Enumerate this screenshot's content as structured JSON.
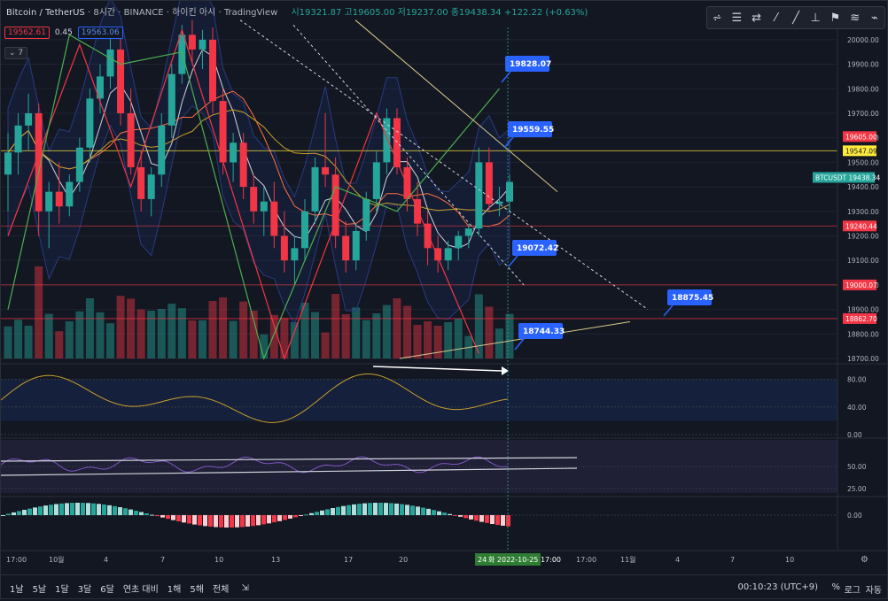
{
  "header": {
    "symbol": "Bitcoin / TetherUS",
    "interval": "8시간",
    "exchange": "BINANCE",
    "session": "하이킨 아시",
    "source": "TradingView",
    "ohlc": "시19321.87 고19605.00 저19237.00 종19438.34 +122.22 (+0.63%)"
  },
  "bidask": {
    "bid": "19562.61",
    "spread": "0.45",
    "ask": "19563.06"
  },
  "collapse_label": "7",
  "toolbar": {
    "icons": [
      "indicators-icon",
      "horizontal-line-icon",
      "trend-line-icon",
      "brush-icon",
      "flag-icon",
      "long-position-icon",
      "pattern-icon",
      "ruler-icon",
      "measure-icon"
    ],
    "glyphs": [
      "⩫",
      "☰",
      "⇄",
      "⁄",
      "╱",
      "⊥",
      "⚑",
      "≋",
      "⌁"
    ]
  },
  "chart_data": [
    {
      "type": "candlestick",
      "title": "",
      "ylim": [
        18700,
        20050
      ],
      "y_ticks": [
        20000,
        19900,
        19800,
        19700,
        19600,
        19500,
        19400,
        19300,
        19200,
        19100,
        19000,
        18900,
        18800,
        18700
      ],
      "price_labels": [
        {
          "value": 19605.0,
          "text": "19605.00",
          "color": "#f23645"
        },
        {
          "value": 19547.09,
          "text": "19547.09",
          "color": "#ffeb3b"
        },
        {
          "value": 19438.34,
          "text": "BTCUSDT 19438.34",
          "color": "#26a69a"
        },
        {
          "value": 19240.44,
          "text": "19240.44",
          "color": "#f23645"
        },
        {
          "value": 19000.07,
          "text": "19000.07",
          "color": "#f23645"
        },
        {
          "value": 18862.7,
          "text": "18862.70",
          "color": "#f23645"
        }
      ],
      "horizontal_lines": [
        {
          "value": 19547.09,
          "color": "#ffeb3b"
        },
        {
          "value": 19240.44,
          "color": "#f23645"
        },
        {
          "value": 19000.07,
          "color": "#f23645"
        },
        {
          "value": 18862.7,
          "color": "#f23645"
        }
      ],
      "callouts": [
        {
          "text": "19828.07"
        },
        {
          "text": "19559.55"
        },
        {
          "text": "19072.42"
        },
        {
          "text": "18875.45"
        },
        {
          "text": "18744.33"
        }
      ],
      "candles": [
        [
          19450,
          19620,
          19300,
          19540
        ],
        [
          19540,
          19700,
          19450,
          19650
        ],
        [
          19650,
          19780,
          19550,
          19700
        ],
        [
          19700,
          19740,
          19200,
          19300
        ],
        [
          19300,
          19420,
          19150,
          19380
        ],
        [
          19380,
          19500,
          19250,
          19320
        ],
        [
          19320,
          19450,
          19280,
          19420
        ],
        [
          19420,
          19600,
          19380,
          19560
        ],
        [
          19560,
          19800,
          19500,
          19760
        ],
        [
          19760,
          19900,
          19700,
          19850
        ],
        [
          19850,
          20020,
          19800,
          19960
        ],
        [
          19960,
          20020,
          19650,
          19700
        ],
        [
          19700,
          19800,
          19450,
          19480
        ],
        [
          19480,
          19550,
          19300,
          19350
        ],
        [
          19350,
          19480,
          19280,
          19450
        ],
        [
          19450,
          19700,
          19400,
          19650
        ],
        [
          19650,
          19900,
          19600,
          19860
        ],
        [
          19860,
          20060,
          19820,
          20020
        ],
        [
          20020,
          20080,
          19900,
          19960
        ],
        [
          19960,
          20040,
          19880,
          20000
        ],
        [
          20000,
          20050,
          19700,
          19750
        ],
        [
          19750,
          19800,
          19450,
          19500
        ],
        [
          19500,
          19620,
          19420,
          19580
        ],
        [
          19580,
          19620,
          19350,
          19400
        ],
        [
          19400,
          19450,
          19250,
          19300
        ],
        [
          19300,
          19400,
          19200,
          19340
        ],
        [
          19340,
          19420,
          19150,
          19200
        ],
        [
          19200,
          19300,
          19050,
          19100
        ],
        [
          19100,
          19200,
          19000,
          19150
        ],
        [
          19150,
          19350,
          19100,
          19300
        ],
        [
          19300,
          19520,
          19250,
          19480
        ],
        [
          19480,
          19700,
          19400,
          19450
        ],
        [
          19450,
          19520,
          19150,
          19200
        ],
        [
          19200,
          19260,
          19050,
          19100
        ],
        [
          19100,
          19250,
          19060,
          19220
        ],
        [
          19220,
          19380,
          19180,
          19350
        ],
        [
          19350,
          19550,
          19300,
          19500
        ],
        [
          19500,
          19720,
          19450,
          19680
        ],
        [
          19680,
          19720,
          19450,
          19480
        ],
        [
          19480,
          19520,
          19300,
          19350
        ],
        [
          19350,
          19420,
          19200,
          19250
        ],
        [
          19250,
          19300,
          19080,
          19150
        ],
        [
          19150,
          19200,
          19050,
          19100
        ],
        [
          19100,
          19180,
          19060,
          19150
        ],
        [
          19150,
          19220,
          19100,
          19200
        ],
        [
          19200,
          19250,
          19150,
          19230
        ],
        [
          19230,
          19560,
          19200,
          19500
        ],
        [
          19500,
          19560,
          19300,
          19330
        ],
        [
          19330,
          19400,
          19280,
          19340
        ],
        [
          19340,
          19450,
          19300,
          19420
        ]
      ]
    },
    {
      "type": "line",
      "title": "",
      "ylim": [
        0,
        100
      ],
      "y_ticks": [
        80,
        40,
        0
      ],
      "y_tick_labels": [
        "80.00",
        "40.00",
        "0.00"
      ],
      "band": [
        20,
        80
      ]
    },
    {
      "type": "line",
      "title": "",
      "ylim": [
        20,
        80
      ],
      "y_ticks": [
        50,
        25
      ],
      "y_tick_labels": [
        "50.00",
        "25.00"
      ]
    },
    {
      "type": "bar",
      "title": "",
      "y_ticks": [
        0
      ],
      "y_tick_labels": [
        "0.00"
      ]
    }
  ],
  "x_axis": {
    "labels": [
      "17:00",
      "10월",
      "4",
      "7",
      "10",
      "13",
      "17",
      "20",
      "24",
      "17:00",
      "11월",
      "4",
      "7",
      "10"
    ],
    "cursor_label": "화 2022-10-25   17:00"
  },
  "bottombar": {
    "timeframes": [
      "1날",
      "5날",
      "1달",
      "3달",
      "6달",
      "연초 대비",
      "1해",
      "5해",
      "전체"
    ],
    "clock": "00:10:23 (UTC+9)",
    "pct": "%",
    "log": "로그",
    "auto": "자동"
  }
}
